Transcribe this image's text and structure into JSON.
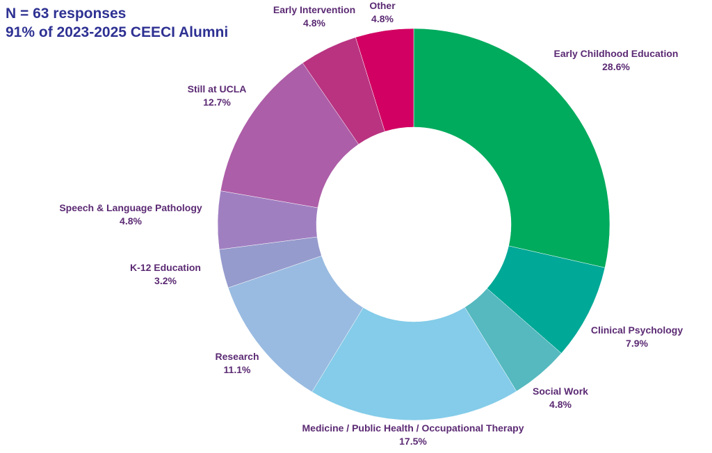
{
  "header": {
    "line1": "N = 63 responses",
    "line2": "91% of 2023-2025 CEECI Alumni"
  },
  "chart_data": {
    "type": "pie",
    "style": "donut",
    "start": "12 o'clock, clockwise",
    "title": "",
    "slices": [
      {
        "name": "Early Childhood Education",
        "value": 28.6,
        "label": "28.6%",
        "color": "#00ab5d"
      },
      {
        "name": "Clinical Psychology",
        "value": 7.9,
        "label": "7.9%",
        "color": "#00a897"
      },
      {
        "name": "Social Work",
        "value": 4.8,
        "label": "4.8%",
        "color": "#55b9bf"
      },
      {
        "name": "Medicine / Public Health / Occupational Therapy",
        "value": 17.5,
        "label": "17.5%",
        "color": "#84cce9"
      },
      {
        "name": "Research",
        "value": 11.1,
        "label": "11.1%",
        "color": "#99bbe1"
      },
      {
        "name": "K-12 Education",
        "value": 3.2,
        "label": "3.2%",
        "color": "#959bcc"
      },
      {
        "name": "Speech & Language Pathology",
        "value": 4.8,
        "label": "4.8%",
        "color": "#a07fc1"
      },
      {
        "name": "Still at UCLA",
        "value": 12.7,
        "label": "12.7%",
        "color": "#ad5ea8"
      },
      {
        "name": "Early Intervention",
        "value": 4.8,
        "label": "4.8%",
        "color": "#b93381"
      },
      {
        "name": "Other",
        "value": 4.8,
        "label": "4.8%",
        "color": "#d10062"
      }
    ]
  }
}
